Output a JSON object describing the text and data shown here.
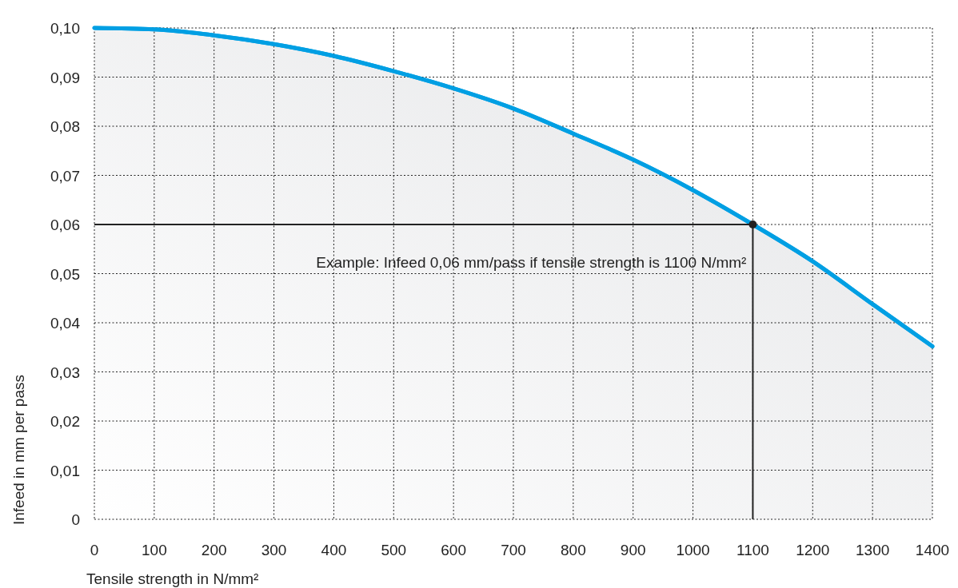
{
  "chart_data": {
    "type": "area",
    "xlabel": "Tensile strength in N/mm²",
    "ylabel": "Infeed in mm per pass",
    "x": [
      0,
      100,
      200,
      300,
      400,
      500,
      600,
      700,
      800,
      900,
      1000,
      1100,
      1200,
      1300,
      1400
    ],
    "series": [
      {
        "color": "#009fe3",
        "values": [
          0.1,
          0.0997,
          0.0985,
          0.0967,
          0.0943,
          0.0912,
          0.0877,
          0.0836,
          0.0785,
          0.0732,
          0.067,
          0.06,
          0.0525,
          0.0438,
          0.0352
        ]
      }
    ],
    "xlim": [
      0,
      1400
    ],
    "xticks": [
      0,
      100,
      200,
      300,
      400,
      500,
      600,
      700,
      800,
      900,
      1000,
      1100,
      1200,
      1300,
      1400
    ],
    "ylim": [
      0,
      0.1
    ],
    "yticks": [
      0,
      {
        "value": 0.01,
        "label": "0,01"
      },
      {
        "value": 0.02,
        "label": "0,02"
      },
      {
        "value": 0.03,
        "label": "0,03"
      },
      {
        "value": 0.04,
        "label": "0,04"
      },
      {
        "value": 0.05,
        "label": "0,05"
      },
      {
        "value": 0.06,
        "label": "0,06"
      },
      {
        "value": 0.07,
        "label": "0,07"
      },
      {
        "value": 0.08,
        "label": "0,08"
      },
      {
        "value": 0.09,
        "label": "0,09"
      },
      {
        "value": 0.1,
        "label": "0,10"
      }
    ],
    "grid": true,
    "line_style": "solid",
    "ref_lines": [
      {
        "axis": "y",
        "value": 0.06,
        "color": "#222222"
      },
      {
        "axis": "x",
        "value": 1100,
        "color": "#222222"
      }
    ],
    "annotations": [
      {
        "text": "Example: Infeed 0,06 mm/pass if tensile strength is 1100 N/mm²",
        "x": 1100,
        "y": 0.06
      }
    ]
  }
}
